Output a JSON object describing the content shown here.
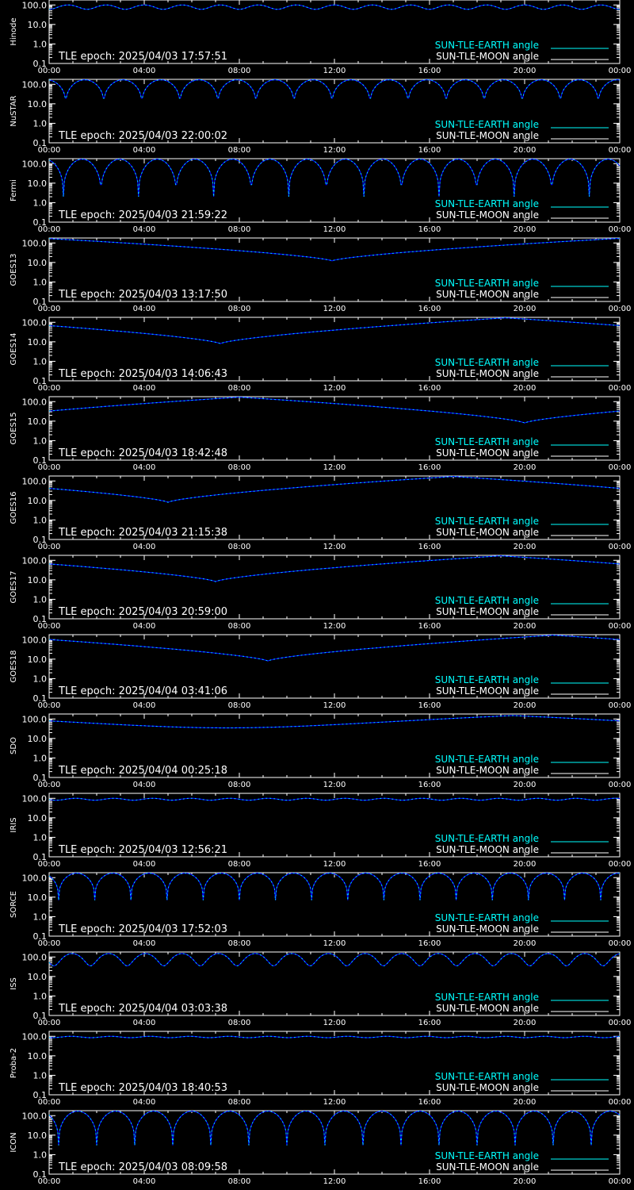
{
  "chart_data": [
    {
      "type": "line",
      "ylabel": "Hinode",
      "epoch": "TLE epoch: 2025/04/03 17:57:51",
      "period_h": 1.6,
      "min": 60,
      "max": 100,
      "shape": "sine",
      "phase_h": 0.0,
      "earth_color": "#00FFFF"
    },
    {
      "type": "line",
      "ylabel": "NuSTAR",
      "epoch": "TLE epoch: 2025/04/03 22:00:02",
      "period_h": 1.6,
      "min": 7,
      "max": 170,
      "shape": "arch",
      "phase_h": 0.7,
      "earth_color": "#00FFFF"
    },
    {
      "type": "line",
      "ylabel": "Fermi",
      "epoch": "TLE epoch: 2025/04/03 21:59:22",
      "period_h": 1.58,
      "min": 2,
      "max": 170,
      "shape": "arch",
      "phase_h": 0.6,
      "earth_color": "#00FFFF"
    },
    {
      "type": "line",
      "ylabel": "GOES13",
      "epoch": "TLE epoch: 2025/04/03 13:17:50",
      "period_h": 24,
      "min": 12,
      "max": 170,
      "shape": "vee",
      "phase_h": 11.9,
      "earth_color": "#00FFFF"
    },
    {
      "type": "line",
      "ylabel": "GOES14",
      "epoch": "TLE epoch: 2025/04/03 14:06:43",
      "period_h": 24,
      "min": 8,
      "max": 170,
      "shape": "vee",
      "phase_h": 7.2,
      "earth_color": "#00FFFF"
    },
    {
      "type": "line",
      "ylabel": "GOES15",
      "epoch": "TLE epoch: 2025/04/03 18:42:48",
      "period_h": 24,
      "min": 8,
      "max": 170,
      "shape": "vee",
      "phase_h": 20.0,
      "earth_color": "#00FFFF"
    },
    {
      "type": "line",
      "ylabel": "GOES16",
      "epoch": "TLE epoch: 2025/04/03 21:15:38",
      "period_h": 24,
      "min": 8,
      "max": 170,
      "shape": "vee",
      "phase_h": 5.0,
      "earth_color": "#00FFFF"
    },
    {
      "type": "line",
      "ylabel": "GOES17",
      "epoch": "TLE epoch: 2025/04/03 20:59:00",
      "period_h": 24,
      "min": 8,
      "max": 170,
      "shape": "vee",
      "phase_h": 7.0,
      "earth_color": "#00FFFF"
    },
    {
      "type": "line",
      "ylabel": "GOES18",
      "epoch": "TLE epoch: 2025/04/04 03:41:06",
      "period_h": 24,
      "min": 8,
      "max": 170,
      "shape": "vee",
      "phase_h": 9.2,
      "earth_color": "#00FFFF"
    },
    {
      "type": "line",
      "ylabel": "SDO",
      "epoch": "TLE epoch: 2025/04/04 00:25:18",
      "period_h": 24,
      "min": 35,
      "max": 150,
      "shape": "flat",
      "phase_h": 7.5,
      "earth_color": "#00FFFF"
    },
    {
      "type": "line",
      "ylabel": "IRIS",
      "epoch": "TLE epoch: 2025/04/03 12:56:21",
      "period_h": 1.62,
      "min": 80,
      "max": 100,
      "shape": "sine",
      "phase_h": 0.3,
      "earth_color": "#00FFFF"
    },
    {
      "type": "line",
      "ylabel": "SORCE",
      "epoch": "TLE epoch: 2025/04/03 17:52:03",
      "period_h": 1.52,
      "min": 7,
      "max": 170,
      "shape": "arch",
      "phase_h": 0.4,
      "earth_color": "#00FFFF"
    },
    {
      "type": "line",
      "ylabel": "ISS",
      "epoch": "TLE epoch: 2025/04/04 03:03:38",
      "period_h": 1.54,
      "min": 35,
      "max": 150,
      "shape": "sine",
      "phase_h": 0.2,
      "earth_color": "#00FFFF"
    },
    {
      "type": "line",
      "ylabel": "Proba-2",
      "epoch": "TLE epoch: 2025/04/03 18:40:53",
      "period_h": 1.66,
      "min": 85,
      "max": 100,
      "shape": "sine",
      "phase_h": 0.1,
      "earth_color": "#00FFFF"
    },
    {
      "type": "line",
      "ylabel": "ICON",
      "epoch": "TLE epoch: 2025/04/03 08:09:58",
      "period_h": 1.6,
      "min": 3,
      "max": 170,
      "shape": "arch",
      "phase_h": 0.4,
      "earth_color": "#00FFFF"
    }
  ],
  "common": {
    "xticks": [
      "00:00",
      "04:00",
      "08:00",
      "12:00",
      "16:00",
      "20:00",
      "00:00"
    ],
    "yticks": [
      "100.0",
      "10.0",
      "1.0",
      "0.1"
    ],
    "legend_earth": "SUN-TLE-EARTH angle",
    "legend_moon": "SUN-TLE-MOON angle",
    "colors": {
      "axis": "#FFFFFF",
      "earth": "#00FFFF",
      "moon": "#FFFFFF",
      "curve": "#0000FF",
      "bg": "#000000"
    },
    "ylim": [
      0.1,
      180
    ],
    "yscale": "log",
    "xrange_h": [
      0,
      24
    ]
  }
}
